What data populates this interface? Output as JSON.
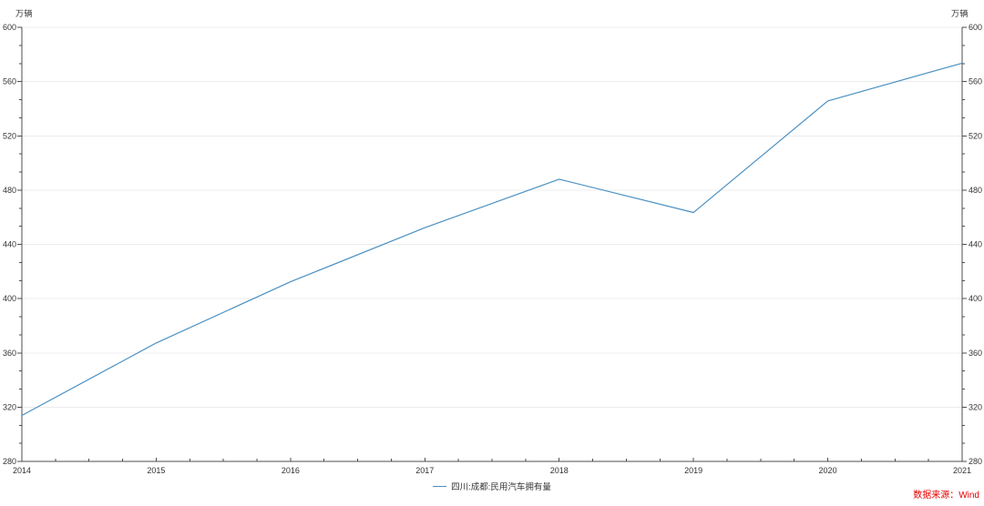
{
  "header": {
    "unit_left": "万辆",
    "unit_right": "万辆"
  },
  "legend": {
    "label": "四川:成都:民用汽车拥有量"
  },
  "source": {
    "label": "数据来源：Wind"
  },
  "colors": {
    "line": "#4a90c2",
    "source_text": "#e60000",
    "grid": "#ececec",
    "axis": "#4d4d4d",
    "tick_label": "#333333"
  },
  "chart_data": {
    "type": "line",
    "title": "",
    "unit": "万辆",
    "categories": [
      "2014",
      "2015",
      "2016",
      "2017",
      "2018",
      "2019",
      "2020",
      "2021"
    ],
    "series": [
      {
        "name": "四川:成都:民用汽车拥有量",
        "color": "#4a90c2",
        "values": [
          313.9,
          367.3,
          412.4,
          452.3,
          488.0,
          463.5,
          545.7,
          573.6
        ]
      }
    ],
    "xlabel": "",
    "ylabel": "万辆",
    "ylim": [
      280,
      600
    ],
    "ytick_step": 40,
    "yticks": [
      280,
      320,
      360,
      400,
      440,
      480,
      520,
      560,
      600
    ],
    "y_minor_divisions": 3,
    "x_minor_divisions": 4,
    "grid": true,
    "legend_position": "bottom-center",
    "source": "数据来源：Wind"
  }
}
